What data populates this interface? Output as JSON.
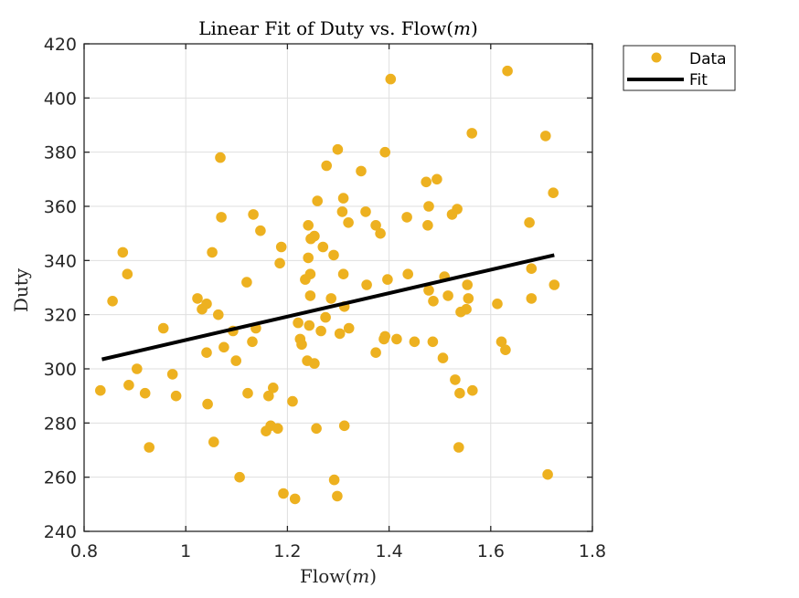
{
  "chart_data": {
    "type": "scatter",
    "title": "Linear Fit of Duty vs. Flow(ṁ)",
    "title_parts": {
      "prefix": "Linear Fit of Duty vs. Flow(",
      "var": "m",
      "suffix": ")"
    },
    "xlabel": "Flow(ṁ)",
    "xlabel_parts": {
      "prefix": "Flow(",
      "var": "m",
      "suffix": ")"
    },
    "ylabel": "Duty",
    "xlim": [
      0.8,
      1.8
    ],
    "ylim": [
      240,
      420
    ],
    "xticks": [
      0.8,
      1.0,
      1.2,
      1.4,
      1.6,
      1.8
    ],
    "xtick_labels": [
      "0.8",
      "1",
      "1.2",
      "1.4",
      "1.6",
      "1.8"
    ],
    "yticks": [
      240,
      260,
      280,
      300,
      320,
      340,
      360,
      380,
      400,
      420
    ],
    "ytick_labels": [
      "240",
      "260",
      "280",
      "300",
      "320",
      "340",
      "360",
      "380",
      "400",
      "420"
    ],
    "grid": true,
    "legend": {
      "placement": "outside-top-right",
      "entries": [
        "Data",
        "Fit"
      ]
    },
    "colors": {
      "data": "#EDB120",
      "fit": "#000000",
      "grid": "#DFDFDF",
      "axis": "#262626"
    },
    "series": [
      {
        "name": "Data",
        "type": "scatter",
        "points": [
          [
            0.832,
            292
          ],
          [
            0.856,
            325
          ],
          [
            0.876,
            343
          ],
          [
            0.885,
            335
          ],
          [
            0.888,
            294
          ],
          [
            0.904,
            300
          ],
          [
            0.92,
            291
          ],
          [
            0.928,
            271
          ],
          [
            0.956,
            315
          ],
          [
            0.974,
            298
          ],
          [
            0.981,
            290
          ],
          [
            1.023,
            326
          ],
          [
            1.032,
            322
          ],
          [
            1.041,
            324
          ],
          [
            1.041,
            306
          ],
          [
            1.043,
            287
          ],
          [
            1.052,
            343
          ],
          [
            1.055,
            273
          ],
          [
            1.064,
            320
          ],
          [
            1.068,
            378
          ],
          [
            1.07,
            356
          ],
          [
            1.075,
            308
          ],
          [
            1.093,
            314
          ],
          [
            1.099,
            303
          ],
          [
            1.106,
            260
          ],
          [
            1.12,
            332
          ],
          [
            1.122,
            291
          ],
          [
            1.131,
            310
          ],
          [
            1.133,
            357
          ],
          [
            1.138,
            315
          ],
          [
            1.147,
            351
          ],
          [
            1.158,
            277
          ],
          [
            1.163,
            290
          ],
          [
            1.167,
            279
          ],
          [
            1.172,
            293
          ],
          [
            1.181,
            278
          ],
          [
            1.185,
            339
          ],
          [
            1.188,
            345
          ],
          [
            1.192,
            254
          ],
          [
            1.21,
            288
          ],
          [
            1.215,
            252
          ],
          [
            1.221,
            317
          ],
          [
            1.225,
            311
          ],
          [
            1.228,
            309
          ],
          [
            1.235,
            333
          ],
          [
            1.239,
            303
          ],
          [
            1.241,
            341
          ],
          [
            1.241,
            353
          ],
          [
            1.243,
            316
          ],
          [
            1.245,
            327
          ],
          [
            1.245,
            335
          ],
          [
            1.246,
            348
          ],
          [
            1.253,
            349
          ],
          [
            1.253,
            302
          ],
          [
            1.257,
            278
          ],
          [
            1.259,
            362
          ],
          [
            1.266,
            314
          ],
          [
            1.27,
            345
          ],
          [
            1.275,
            319
          ],
          [
            1.277,
            375
          ],
          [
            1.286,
            326
          ],
          [
            1.291,
            342
          ],
          [
            1.292,
            259
          ],
          [
            1.298,
            253
          ],
          [
            1.299,
            381
          ],
          [
            1.303,
            313
          ],
          [
            1.308,
            358
          ],
          [
            1.31,
            363
          ],
          [
            1.31,
            335
          ],
          [
            1.312,
            323
          ],
          [
            1.312,
            279
          ],
          [
            1.32,
            354
          ],
          [
            1.321,
            315
          ],
          [
            1.345,
            373
          ],
          [
            1.354,
            358
          ],
          [
            1.356,
            331
          ],
          [
            1.374,
            306
          ],
          [
            1.374,
            353
          ],
          [
            1.383,
            350
          ],
          [
            1.39,
            311
          ],
          [
            1.392,
            312
          ],
          [
            1.392,
            380
          ],
          [
            1.397,
            333
          ],
          [
            1.403,
            407
          ],
          [
            1.415,
            311
          ],
          [
            1.435,
            356
          ],
          [
            1.437,
            335
          ],
          [
            1.45,
            310
          ],
          [
            1.473,
            369
          ],
          [
            1.476,
            353
          ],
          [
            1.478,
            360
          ],
          [
            1.478,
            329
          ],
          [
            1.486,
            310
          ],
          [
            1.487,
            325
          ],
          [
            1.494,
            370
          ],
          [
            1.506,
            304
          ],
          [
            1.509,
            334
          ],
          [
            1.516,
            327
          ],
          [
            1.524,
            357
          ],
          [
            1.53,
            296
          ],
          [
            1.534,
            359
          ],
          [
            1.537,
            271
          ],
          [
            1.539,
            291
          ],
          [
            1.541,
            321
          ],
          [
            1.552,
            322
          ],
          [
            1.554,
            331
          ],
          [
            1.556,
            326
          ],
          [
            1.563,
            387
          ],
          [
            1.564,
            292
          ],
          [
            1.613,
            324
          ],
          [
            1.621,
            310
          ],
          [
            1.629,
            307
          ],
          [
            1.633,
            410
          ],
          [
            1.676,
            354
          ],
          [
            1.68,
            326
          ],
          [
            1.68,
            337
          ],
          [
            1.708,
            386
          ],
          [
            1.712,
            261
          ],
          [
            1.723,
            365
          ],
          [
            1.725,
            331
          ]
        ]
      },
      {
        "name": "Fit",
        "type": "line",
        "points": [
          [
            0.835,
            303.5
          ],
          [
            1.725,
            342.0
          ]
        ]
      }
    ]
  }
}
